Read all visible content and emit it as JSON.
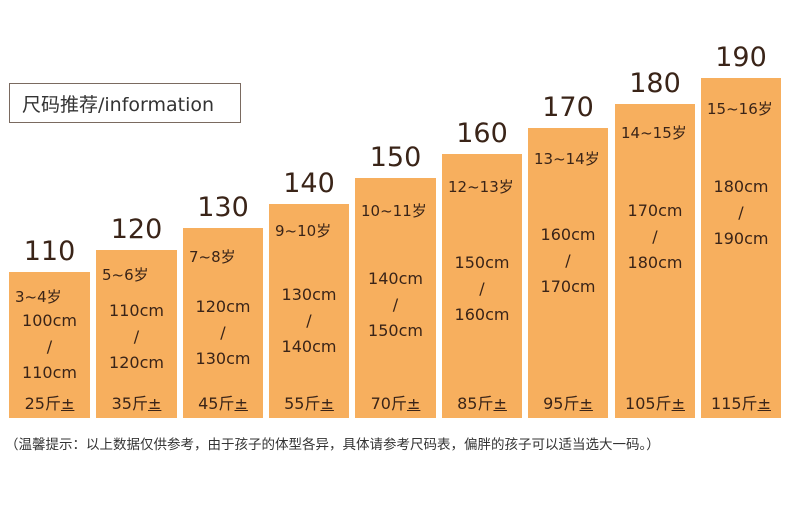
{
  "header": {
    "title": "尺码推荐/information"
  },
  "sizes": [
    {
      "size": "110",
      "age": "3~4岁",
      "h1": "100cm",
      "sep": "/",
      "h2": "110cm",
      "weight": "25斤",
      "pm": "±"
    },
    {
      "size": "120",
      "age": "5~6岁",
      "h1": "110cm",
      "sep": "/",
      "h2": "120cm",
      "weight": "35斤",
      "pm": "±"
    },
    {
      "size": "130",
      "age": "7~8岁",
      "h1": "120cm",
      "sep": "/",
      "h2": "130cm",
      "weight": "45斤",
      "pm": "±"
    },
    {
      "size": "140",
      "age": "9~10岁",
      "h1": "130cm",
      "sep": "/",
      "h2": "140cm",
      "weight": "55斤",
      "pm": "±"
    },
    {
      "size": "150",
      "age": "10~11岁",
      "h1": "140cm",
      "sep": "/",
      "h2": "150cm",
      "weight": "70斤",
      "pm": "±"
    },
    {
      "size": "160",
      "age": "12~13岁",
      "h1": "150cm",
      "sep": "/",
      "h2": "160cm",
      "weight": "85斤",
      "pm": "±"
    },
    {
      "size": "170",
      "age": "13~14岁",
      "h1": "160cm",
      "sep": "/",
      "h2": "170cm",
      "weight": "95斤",
      "pm": "±"
    },
    {
      "size": "180",
      "age": "14~15岁",
      "h1": "170cm",
      "sep": "/",
      "h2": "180cm",
      "weight": "105斤",
      "pm": "±"
    },
    {
      "size": "190",
      "age": "15~16岁",
      "h1": "180cm",
      "sep": "/",
      "h2": "190cm",
      "weight": "115斤",
      "pm": "±"
    }
  ],
  "footnote": "（温馨提示：以上数据仅供参考，由于孩子的体型各异，具体请参考尺码表，偏胖的孩子可以适当选大一码。）",
  "colors": {
    "bar": "#f7af5e",
    "text": "#3a2418"
  }
}
